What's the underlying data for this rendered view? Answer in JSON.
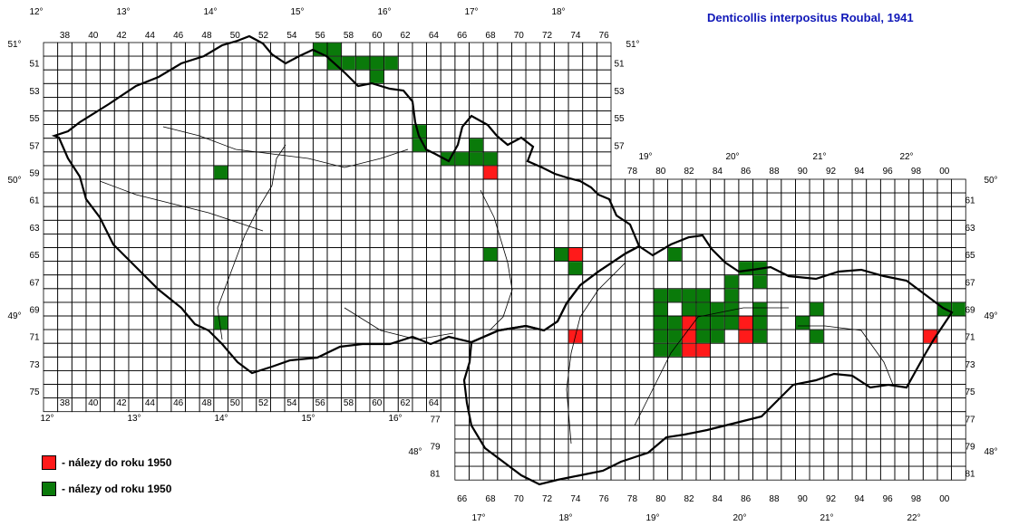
{
  "title": "Denticollis interpositus Roubal, 1941",
  "legend": [
    {
      "label": "- nálezy do roku 1950",
      "color": "#ff1a1a"
    },
    {
      "label": "- nálezy od roku 1950",
      "color": "#0a7a0a"
    }
  ],
  "grid_colors": {
    "line": "#000000",
    "before_1950": "#ff1a1a",
    "since_1950": "#0a7a0a"
  },
  "cz": {
    "col_labels": [
      "38",
      "40",
      "42",
      "44",
      "46",
      "48",
      "50",
      "52",
      "54",
      "56",
      "58",
      "60",
      "62",
      "64",
      "66",
      "68",
      "70",
      "72",
      "74",
      "76"
    ],
    "row_labels": [
      "51",
      "53",
      "55",
      "57",
      "59",
      "61",
      "63",
      "65",
      "67",
      "69",
      "71",
      "73",
      "75"
    ],
    "lon_labels_top": [
      "12°",
      "13°",
      "14°",
      "15°",
      "16°",
      "17°",
      "18°"
    ],
    "lon_labels_bottom": [
      "12°",
      "13°",
      "14°",
      "15°",
      "16°"
    ],
    "lat_labels_left": [
      "51°",
      "50°",
      "49°"
    ],
    "lat_labels_right": [
      "51°"
    ]
  },
  "sk": {
    "col_labels_top": [
      "78",
      "80",
      "82",
      "84",
      "86",
      "88",
      "90",
      "92",
      "94",
      "96",
      "98",
      "00"
    ],
    "col_labels_bottom": [
      "66",
      "68",
      "70",
      "72",
      "74",
      "76",
      "78",
      "80",
      "82",
      "84",
      "86",
      "88",
      "90",
      "92",
      "94",
      "96",
      "98",
      "00"
    ],
    "row_labels_right": [
      "61",
      "63",
      "65",
      "67",
      "69",
      "71",
      "73",
      "75",
      "77",
      "79",
      "81"
    ],
    "row_labels_left": [
      "77",
      "79",
      "81"
    ],
    "lon_labels_top": [
      "19°",
      "20°",
      "21°",
      "22°"
    ],
    "lon_labels_bottom": [
      "17°",
      "18°",
      "19°",
      "20°",
      "21°",
      "22°"
    ],
    "lat_labels_right": [
      "50°",
      "49°",
      "48°"
    ],
    "lat_labels_left": [
      "48°"
    ]
  },
  "records": {
    "before_1950": [
      "6859",
      "7465",
      "8270",
      "8670",
      "8671",
      "8272",
      "7471",
      "8271",
      "9971",
      "8372"
    ],
    "since_1950": [
      "5650",
      "5750",
      "5751",
      "5851",
      "5951",
      "6051",
      "6052",
      "6151",
      "6356",
      "6357",
      "6558",
      "6658",
      "6758",
      "6757",
      "6858",
      "4959",
      "4970",
      "6865",
      "7365",
      "7465",
      "7466",
      "8068",
      "8069",
      "8070",
      "8071",
      "8072",
      "8165",
      "8168",
      "8170",
      "8171",
      "8172",
      "8268",
      "8269",
      "8270",
      "8271",
      "8368",
      "8369",
      "8370",
      "8371",
      "8469",
      "8470",
      "8471",
      "8567",
      "8568",
      "8569",
      "8570",
      "8666",
      "8670",
      "8671",
      "8766",
      "8767",
      "8769",
      "8770",
      "8771",
      "9070",
      "9171",
      "9169",
      "0069",
      "0169"
    ]
  }
}
